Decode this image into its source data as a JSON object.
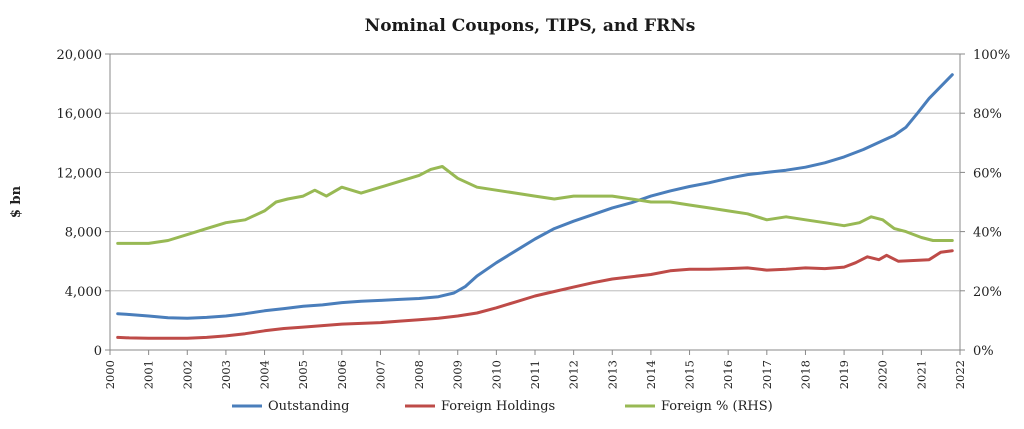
{
  "chart_data": {
    "type": "line",
    "title": "Nominal Coupons, TIPS, and FRNs",
    "xlabel": "",
    "ylabel": "$ bn",
    "y2label": "",
    "xlim": [
      2000,
      2022
    ],
    "ylim": [
      0,
      20000
    ],
    "y2lim": [
      0,
      100
    ],
    "x_ticks": [
      "2000",
      "2001",
      "2002",
      "2003",
      "2004",
      "2005",
      "2006",
      "2007",
      "2008",
      "2009",
      "2010",
      "2011",
      "2012",
      "2013",
      "2014",
      "2015",
      "2016",
      "2017",
      "2018",
      "2019",
      "2020",
      "2021",
      "2022"
    ],
    "y_ticks": [
      "0",
      "4,000",
      "8,000",
      "12,000",
      "16,000",
      "20,000"
    ],
    "y2_ticks": [
      "0%",
      "20%",
      "40%",
      "60%",
      "80%",
      "100%"
    ],
    "legend_position": "bottom",
    "colors": {
      "outstanding": "#4a7ebb",
      "foreign_holdings": "#be4b48",
      "foreign_pct": "#98b954",
      "axis": "#888888"
    },
    "series": [
      {
        "name": "Outstanding",
        "key": "outstanding",
        "axis": "left",
        "x": [
          2000.2,
          2000.5,
          2001,
          2001.5,
          2002,
          2002.5,
          2003,
          2003.5,
          2004,
          2004.5,
          2005,
          2005.5,
          2006,
          2006.5,
          2007,
          2007.5,
          2008,
          2008.5,
          2008.9,
          2009.2,
          2009.5,
          2010,
          2010.5,
          2011,
          2011.5,
          2012,
          2012.5,
          2013,
          2013.5,
          2014,
          2014.5,
          2015,
          2015.5,
          2016,
          2016.5,
          2017,
          2017.5,
          2018,
          2018.5,
          2019,
          2019.5,
          2020,
          2020.3,
          2020.6,
          2020.9,
          2021.2,
          2021.5,
          2021.8
        ],
        "values": [
          2450,
          2400,
          2300,
          2180,
          2150,
          2200,
          2300,
          2450,
          2650,
          2800,
          2950,
          3050,
          3200,
          3300,
          3350,
          3420,
          3480,
          3600,
          3850,
          4300,
          5000,
          5900,
          6700,
          7500,
          8200,
          8700,
          9150,
          9600,
          9950,
          10400,
          10750,
          11050,
          11300,
          11600,
          11850,
          12000,
          12150,
          12350,
          12650,
          13050,
          13550,
          14150,
          14500,
          15050,
          16000,
          17000,
          17800,
          18600
        ]
      },
      {
        "name": "Foreign Holdings",
        "key": "foreign_holdings",
        "axis": "left",
        "x": [
          2000.2,
          2000.5,
          2001,
          2001.5,
          2002,
          2002.5,
          2003,
          2003.5,
          2004,
          2004.5,
          2005,
          2005.5,
          2006,
          2006.5,
          2007,
          2007.5,
          2008,
          2008.5,
          2009,
          2009.5,
          2010,
          2010.5,
          2011,
          2011.5,
          2012,
          2012.5,
          2013,
          2013.5,
          2014,
          2014.5,
          2015,
          2015.5,
          2016,
          2016.5,
          2017,
          2017.5,
          2018,
          2018.5,
          2019,
          2019.3,
          2019.6,
          2019.9,
          2020.1,
          2020.4,
          2020.8,
          2021.2,
          2021.5,
          2021.8
        ],
        "values": [
          850,
          820,
          800,
          790,
          800,
          850,
          950,
          1100,
          1300,
          1450,
          1550,
          1650,
          1750,
          1800,
          1850,
          1950,
          2050,
          2150,
          2300,
          2500,
          2850,
          3250,
          3650,
          3950,
          4250,
          4550,
          4800,
          4950,
          5100,
          5350,
          5450,
          5450,
          5500,
          5550,
          5400,
          5450,
          5550,
          5500,
          5600,
          5900,
          6300,
          6100,
          6400,
          6000,
          6050,
          6100,
          6600,
          6700
        ]
      },
      {
        "name": "Foreign % (RHS)",
        "key": "foreign_pct",
        "axis": "right",
        "x": [
          2000.2,
          2000.5,
          2001,
          2001.5,
          2002,
          2002.5,
          2003,
          2003.5,
          2004,
          2004.3,
          2004.6,
          2005,
          2005.3,
          2005.6,
          2006,
          2006.5,
          2007,
          2007.5,
          2008,
          2008.3,
          2008.6,
          2009,
          2009.5,
          2010,
          2010.5,
          2011,
          2011.5,
          2012,
          2012.5,
          2013,
          2013.5,
          2014,
          2014.5,
          2015,
          2015.5,
          2016,
          2016.5,
          2017,
          2017.5,
          2018,
          2018.5,
          2019,
          2019.4,
          2019.7,
          2020,
          2020.3,
          2020.6,
          2021,
          2021.3,
          2021.6,
          2021.8
        ],
        "values": [
          36,
          36,
          36,
          37,
          39,
          41,
          43,
          44,
          47,
          50,
          51,
          52,
          54,
          52,
          55,
          53,
          55,
          57,
          59,
          61,
          62,
          58,
          55,
          54,
          53,
          52,
          51,
          52,
          52,
          52,
          51,
          50,
          50,
          49,
          48,
          47,
          46,
          44,
          45,
          44,
          43,
          42,
          43,
          45,
          44,
          41,
          40,
          38,
          37,
          37,
          37
        ]
      }
    ]
  }
}
